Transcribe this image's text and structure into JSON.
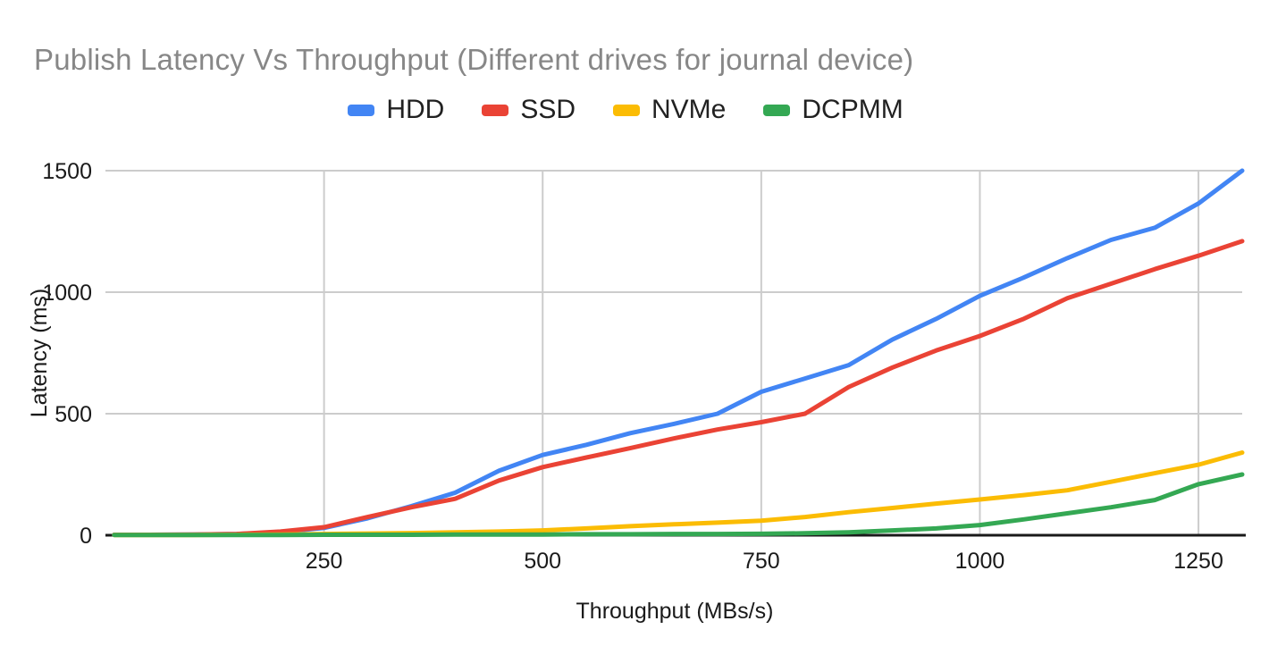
{
  "title": "Publish Latency Vs Throughput (Different drives for journal device)",
  "chart_data": {
    "type": "line",
    "title": "Publish Latency Vs Throughput (Different drives for journal device)",
    "xlabel": "Throughput (MBs/s)",
    "ylabel": "Latency (ms)",
    "xlim": [
      0,
      1300
    ],
    "ylim": [
      0,
      1500
    ],
    "x_ticks": [
      250,
      500,
      750,
      1000,
      1250
    ],
    "y_ticks": [
      0,
      500,
      1000,
      1500
    ],
    "grid": true,
    "legend_position": "top",
    "x": [
      10,
      50,
      100,
      150,
      200,
      250,
      300,
      350,
      400,
      450,
      500,
      550,
      600,
      650,
      700,
      750,
      800,
      850,
      900,
      950,
      1000,
      1050,
      1100,
      1150,
      1200,
      1250,
      1300
    ],
    "series": [
      {
        "name": "HDD",
        "color": "#4285F4",
        "values": [
          2,
          2,
          3,
          5,
          12,
          30,
          70,
          120,
          175,
          265,
          330,
          372,
          420,
          458,
          500,
          590,
          645,
          700,
          805,
          890,
          985,
          1060,
          1140,
          1215,
          1265,
          1365,
          1500
        ]
      },
      {
        "name": "SSD",
        "color": "#EA4335",
        "values": [
          2,
          2,
          3,
          5,
          15,
          33,
          75,
          115,
          150,
          225,
          280,
          320,
          358,
          398,
          435,
          465,
          500,
          610,
          690,
          760,
          820,
          890,
          975,
          1035,
          1095,
          1150,
          1210
        ]
      },
      {
        "name": "NVMe",
        "color": "#FBBC04",
        "values": [
          1,
          1,
          1,
          2,
          3,
          5,
          7,
          9,
          12,
          15,
          20,
          28,
          37,
          45,
          52,
          60,
          75,
          95,
          112,
          130,
          147,
          165,
          185,
          220,
          255,
          290,
          340
        ]
      },
      {
        "name": "DCPMM",
        "color": "#34A853",
        "values": [
          1,
          1,
          1,
          1,
          1,
          2,
          2,
          2,
          3,
          3,
          3,
          4,
          4,
          5,
          5,
          6,
          8,
          12,
          20,
          28,
          42,
          65,
          90,
          115,
          145,
          210,
          250
        ]
      }
    ]
  },
  "style": {
    "gridline_color": "#cccccc",
    "axis_color": "#1a1a1a",
    "tick_label_color": "#1a1a1a",
    "title_color": "#878787"
  }
}
